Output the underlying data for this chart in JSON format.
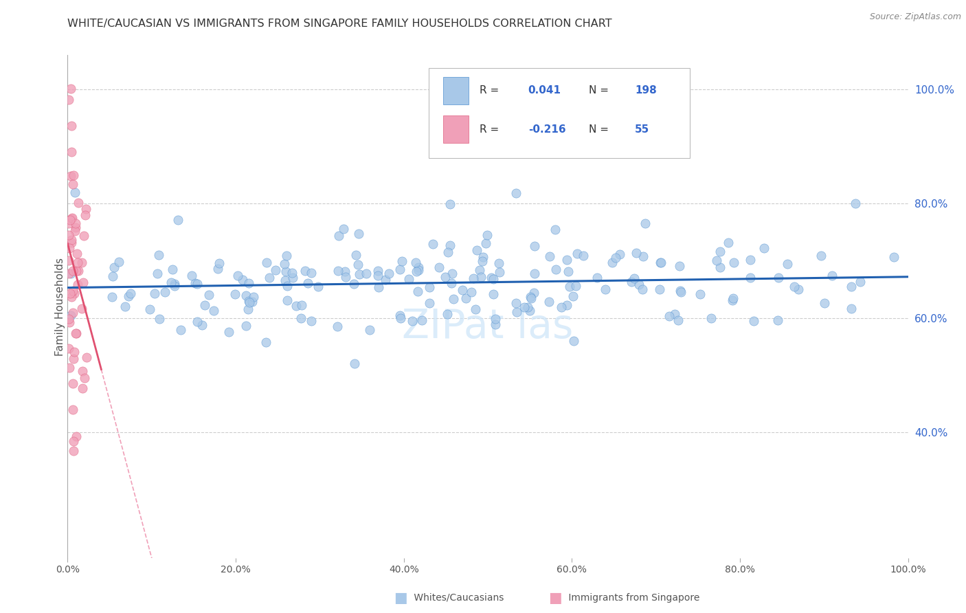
{
  "title": "WHITE/CAUCASIAN VS IMMIGRANTS FROM SINGAPORE FAMILY HOUSEHOLDS CORRELATION CHART",
  "source": "Source: ZipAtlas.com",
  "ylabel": "Family Households",
  "blue_color": "#a8c8e8",
  "blue_edge_color": "#5090d0",
  "pink_color": "#f0a0b8",
  "pink_edge_color": "#e06080",
  "blue_line_color": "#2060b0",
  "pink_line_color": "#e05070",
  "pink_dash_color": "#f0a0b8",
  "text_color": "#3366cc",
  "title_color": "#333333",
  "blue_R": 0.041,
  "blue_N": 198,
  "pink_R": -0.216,
  "pink_N": 55,
  "xmin": 0.0,
  "xmax": 1.0,
  "ymin": 0.18,
  "ymax": 1.06,
  "ytick_vals": [
    0.4,
    0.6,
    0.8,
    1.0
  ],
  "ytick_labels": [
    "40.0%",
    "60.0%",
    "80.0%",
    "100.0%"
  ],
  "xtick_vals": [
    0.0,
    0.2,
    0.4,
    0.6,
    0.8,
    1.0
  ],
  "xtick_labels": [
    "0.0%",
    "20.0%",
    "40.0%",
    "60.0%",
    "80.0%",
    "100.0%"
  ],
  "blue_trend_y_at_0": 0.653,
  "blue_trend_y_at_1": 0.672,
  "pink_trend_y_at_0": 0.73,
  "pink_trend_slope": -5.5,
  "watermark_color": "#cce4f8",
  "grid_color": "#cccccc",
  "legend_R_color": "#000000",
  "legend_val_color": "#3366cc",
  "bottom_legend_color": "#555555"
}
